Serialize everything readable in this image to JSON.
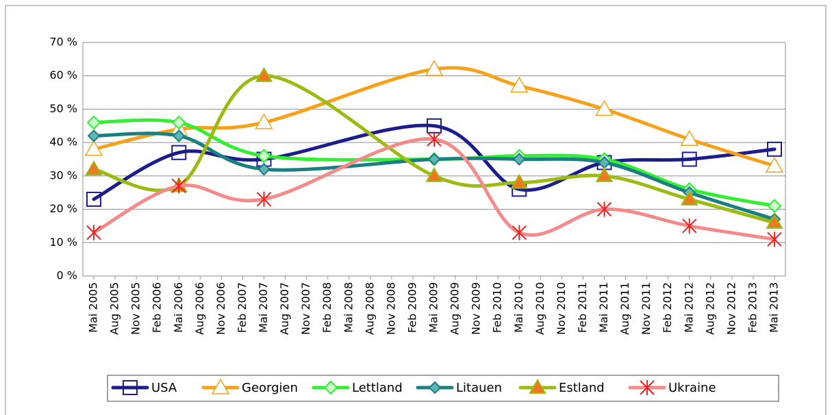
{
  "chart_data": {
    "type": "line",
    "categories": [
      "Mai 2005",
      "Aug 2005",
      "Nov 2005",
      "Feb 2006",
      "Mai 2006",
      "Aug 2006",
      "Nov 2006",
      "Feb 2007",
      "Mai 2007",
      "Aug 2007",
      "Nov 2007",
      "Feb 2008",
      "Mai 2008",
      "Aug 2008",
      "Nov 2008",
      "Feb 2009",
      "Mai 2009",
      "Aug 2009",
      "Nov 2009",
      "Feb 2010",
      "Mai 2010",
      "Aug 2010",
      "Nov 2010",
      "Feb 2011",
      "Mai 2011",
      "Aug 2011",
      "Nov 2011",
      "Feb 2012",
      "Mai 2012",
      "Aug 2012",
      "Nov 2012",
      "Feb 2013",
      "Mai 2013"
    ],
    "series": [
      {
        "name": "USA",
        "color": "#1c1c8a",
        "marker": "square",
        "values": [
          23,
          null,
          null,
          null,
          37,
          null,
          null,
          null,
          35,
          null,
          null,
          null,
          null,
          null,
          null,
          null,
          45,
          null,
          null,
          null,
          26,
          null,
          null,
          null,
          34,
          null,
          null,
          null,
          35,
          null,
          null,
          null,
          38
        ]
      },
      {
        "name": "Georgien",
        "color": "#f7a11a",
        "marker": "triangle-open",
        "values": [
          38,
          null,
          null,
          null,
          44,
          null,
          null,
          null,
          46,
          null,
          null,
          null,
          null,
          null,
          null,
          null,
          62,
          null,
          null,
          null,
          57,
          null,
          null,
          null,
          50,
          null,
          null,
          null,
          41,
          null,
          null,
          null,
          33
        ]
      },
      {
        "name": "Lettland",
        "color": "#33ee33",
        "marker": "diamond-open",
        "values": [
          46,
          null,
          null,
          null,
          46,
          null,
          null,
          null,
          36,
          null,
          null,
          null,
          null,
          null,
          null,
          null,
          35,
          null,
          null,
          null,
          36,
          null,
          null,
          null,
          35,
          null,
          null,
          null,
          26,
          null,
          null,
          null,
          21
        ]
      },
      {
        "name": "Litauen",
        "color": "#1a7f7f",
        "marker": "diamond",
        "values": [
          42,
          null,
          null,
          null,
          42,
          null,
          null,
          null,
          32,
          null,
          null,
          null,
          null,
          null,
          null,
          null,
          35,
          null,
          null,
          null,
          35,
          null,
          null,
          null,
          34,
          null,
          null,
          null,
          25,
          null,
          null,
          null,
          17
        ]
      },
      {
        "name": "Estland",
        "color": "#9bbb11",
        "marker": "triangle",
        "values": [
          32,
          null,
          null,
          null,
          27,
          null,
          null,
          null,
          60,
          null,
          null,
          null,
          null,
          null,
          null,
          null,
          30,
          null,
          null,
          null,
          28,
          null,
          null,
          null,
          30,
          null,
          null,
          null,
          23,
          null,
          null,
          null,
          16
        ]
      },
      {
        "name": "Ukraine",
        "color": "#f58a8a",
        "marker": "x",
        "values": [
          13,
          null,
          null,
          null,
          27,
          null,
          null,
          null,
          23,
          null,
          null,
          null,
          null,
          null,
          null,
          null,
          41,
          null,
          null,
          null,
          13,
          null,
          null,
          null,
          20,
          null,
          null,
          null,
          15,
          null,
          null,
          null,
          11
        ]
      }
    ],
    "ylim": [
      0,
      70
    ],
    "yticks": [
      {
        "value": 0,
        "label": "0 %"
      },
      {
        "value": 10,
        "label": "10 %"
      },
      {
        "value": 20,
        "label": "20 %"
      },
      {
        "value": 30,
        "label": "30 %"
      },
      {
        "value": 40,
        "label": "40 %"
      },
      {
        "value": 50,
        "label": "50 %"
      },
      {
        "value": 60,
        "label": "60 %"
      },
      {
        "value": 70,
        "label": "70 %"
      }
    ],
    "grid": true,
    "smooth": true,
    "span_gaps": true,
    "legend": "bottom"
  }
}
